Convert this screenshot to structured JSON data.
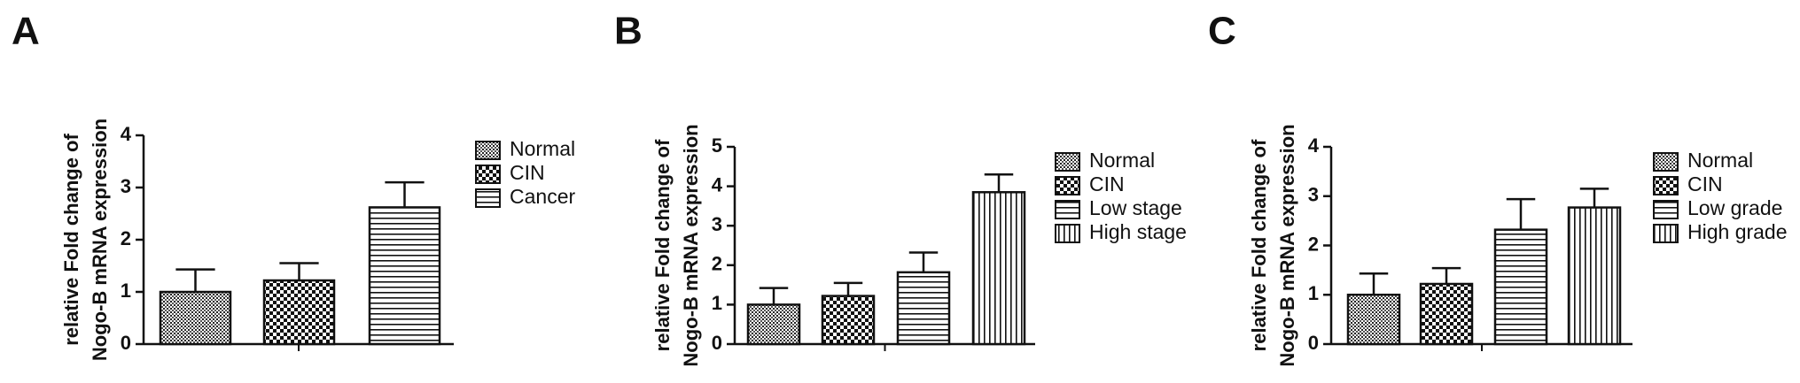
{
  "chart_data": [
    {
      "type": "bar",
      "panel": "A",
      "y_label": [
        "relative  Fold change of",
        "Nogo-B mRNA expression"
      ],
      "categories": [
        "Normal",
        "CIN",
        "Cancer"
      ],
      "values": [
        1.0,
        1.22,
        2.62
      ],
      "errors": [
        0.43,
        0.33,
        0.48
      ],
      "patterns": [
        "dots",
        "checker",
        "hlines"
      ],
      "ylim": [
        0,
        4
      ],
      "yticks": [
        0,
        1,
        2,
        3,
        4
      ]
    },
    {
      "type": "bar",
      "panel": "B",
      "y_label": [
        "relative  Fold change of",
        "Nogo-B mRNA expression"
      ],
      "categories": [
        "Normal",
        "CIN",
        "Low stage",
        "High stage"
      ],
      "values": [
        1.0,
        1.22,
        1.82,
        3.85
      ],
      "errors": [
        0.42,
        0.33,
        0.5,
        0.45
      ],
      "patterns": [
        "dots",
        "checker",
        "hlines",
        "vlines"
      ],
      "ylim": [
        0,
        5
      ],
      "yticks": [
        0,
        1,
        2,
        3,
        4,
        5
      ]
    },
    {
      "type": "bar",
      "panel": "C",
      "y_label": [
        "relative  Fold change of",
        "Nogo-B mRNA expression"
      ],
      "categories": [
        "Normal",
        "CIN",
        "Low grade",
        "High grade"
      ],
      "values": [
        1.0,
        1.22,
        2.32,
        2.77
      ],
      "errors": [
        0.43,
        0.32,
        0.62,
        0.38
      ],
      "patterns": [
        "dots",
        "checker",
        "hlines",
        "vlines"
      ],
      "ylim": [
        0,
        4
      ],
      "yticks": [
        0,
        1,
        2,
        3,
        4
      ]
    }
  ]
}
